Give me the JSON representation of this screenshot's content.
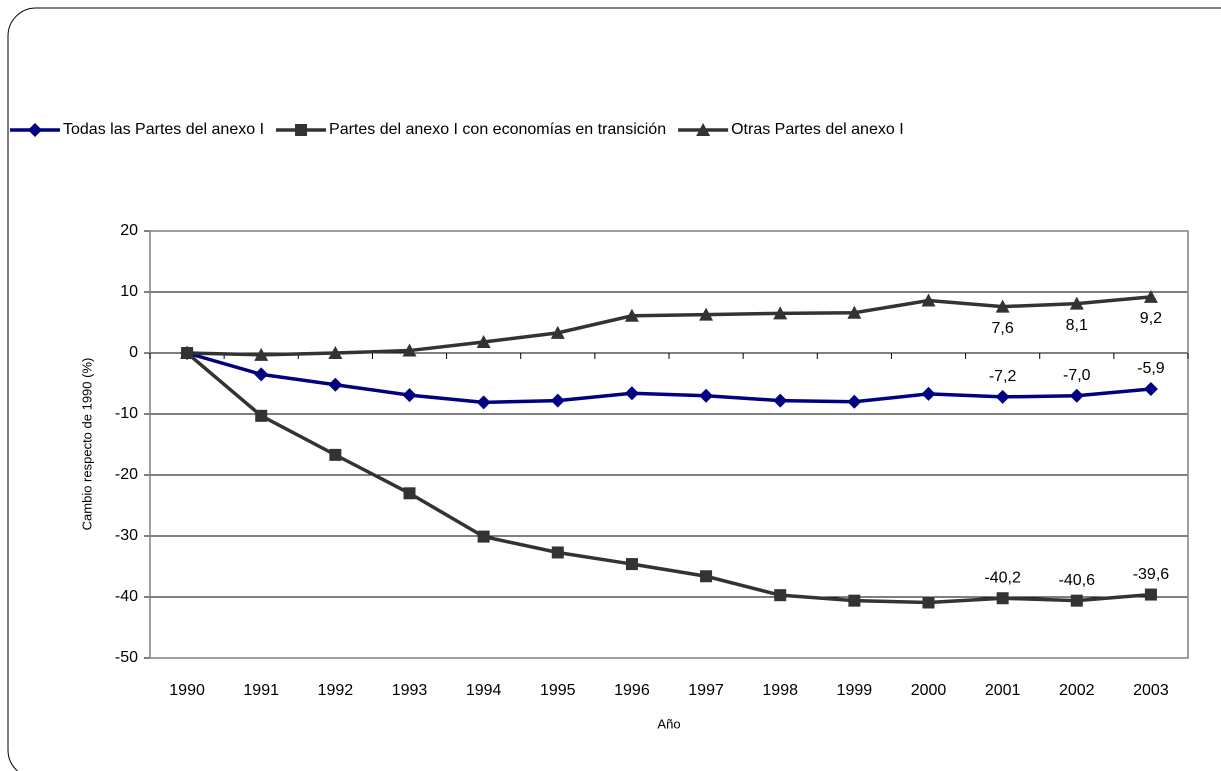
{
  "chart_data": {
    "type": "line",
    "x_label": "Año",
    "y_label": "Cambio respecto de 1990 (%)",
    "categories": [
      "1990",
      "1991",
      "1992",
      "1993",
      "1994",
      "1995",
      "1996",
      "1997",
      "1998",
      "1999",
      "2000",
      "2001",
      "2002",
      "2003"
    ],
    "series": [
      {
        "name": "Todas las Partes del anexo I",
        "color": "#000080",
        "marker": "diamond",
        "label_position": "above",
        "values": [
          0,
          -3.5,
          -5.2,
          -6.9,
          -8.1,
          -7.8,
          -6.6,
          -7.0,
          -7.8,
          -8.0,
          -6.7,
          -7.2,
          -7.0,
          -5.9
        ],
        "value_labels": [
          null,
          null,
          null,
          null,
          null,
          null,
          null,
          null,
          null,
          null,
          null,
          "-7,2",
          "-7,0",
          "-5,9"
        ]
      },
      {
        "name": "Partes del anexo I con economías en transición",
        "color": "#333333",
        "marker": "square",
        "label_position": "above",
        "values": [
          0,
          -10.3,
          -16.7,
          -23.0,
          -30.1,
          -32.7,
          -34.6,
          -36.6,
          -39.7,
          -40.6,
          -40.9,
          -40.2,
          -40.6,
          -39.6
        ],
        "value_labels": [
          null,
          null,
          null,
          null,
          null,
          null,
          null,
          null,
          null,
          null,
          null,
          "-40,2",
          "-40,6",
          "-39,6"
        ]
      },
      {
        "name": "Otras Partes del anexo I",
        "color": "#333333",
        "marker": "triangle",
        "label_position": "below",
        "values": [
          0,
          -0.3,
          0,
          0.4,
          1.8,
          3.3,
          6.1,
          6.3,
          6.5,
          6.6,
          8.6,
          7.6,
          8.1,
          9.2
        ],
        "value_labels": [
          null,
          null,
          null,
          null,
          null,
          null,
          null,
          null,
          null,
          null,
          null,
          "7,6",
          "8,1",
          "9,2"
        ]
      }
    ],
    "ylim": [
      -50,
      20
    ],
    "yticks": [
      -50,
      -40,
      -30,
      -20,
      -10,
      0,
      10,
      20
    ],
    "grid": true,
    "legend": "top"
  }
}
